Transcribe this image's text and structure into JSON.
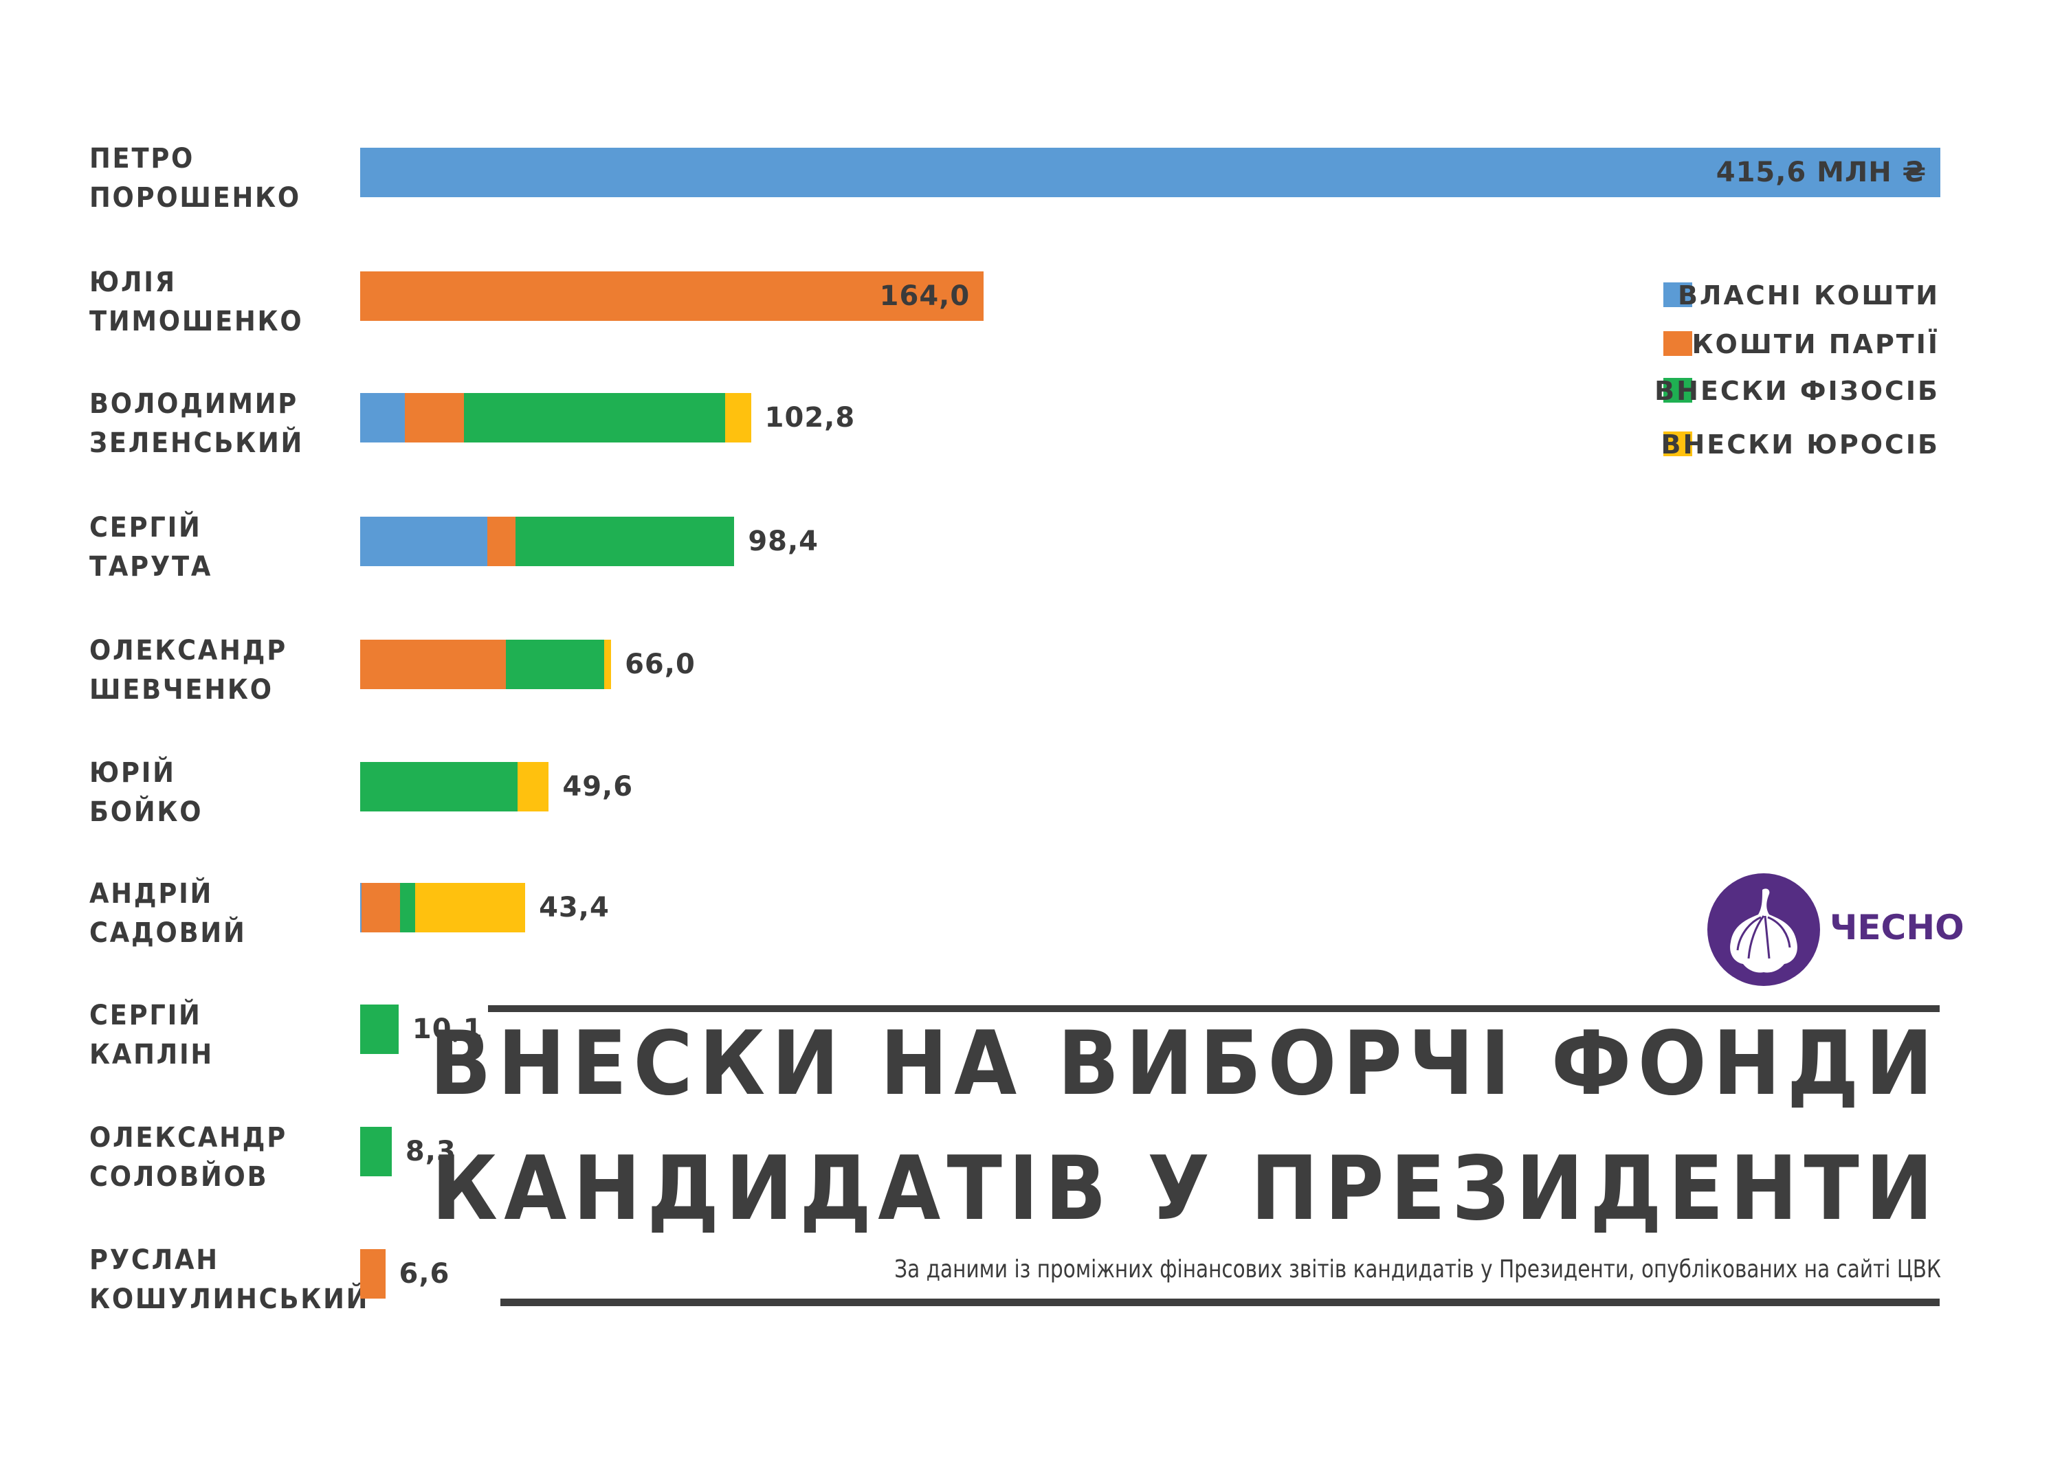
{
  "title": {
    "line1": "ВНЕСКИ НА ВИБОРЧІ ФОНДИ",
    "line2": "КАНДИДАТІВ У ПРЕЗИДЕНТИ",
    "subtitle": "За даними із проміжних фінансових звітів кандидатів у Президенти, опублікованих на сайті ЦВК"
  },
  "logo": {
    "text": "ЧЕСНО",
    "color": "#552D83"
  },
  "legend": [
    {
      "label": "ВЛАСНІ КОШТИ",
      "color": "#5B9BD5"
    },
    {
      "label": "КОШТИ ПАРТІЇ",
      "color": "#ED7D31"
    },
    {
      "label": "ВНЕСКИ ФІЗОСІБ",
      "color": "#1FB052"
    },
    {
      "label": "ВНЕСКИ ЮРОСІБ",
      "color": "#FFC10E"
    }
  ],
  "rows": [
    {
      "first": "ПЕТРО",
      "last": "ПОРОШЕНКО",
      "total_label": "415,6 МЛН ₴"
    },
    {
      "first": "ЮЛІЯ",
      "last": "ТИМОШЕНКО",
      "total_label": "164,0"
    },
    {
      "first": "ВОЛОДИМИР",
      "last": "ЗЕЛЕНСЬКИЙ",
      "total_label": "102,8"
    },
    {
      "first": "СЕРГІЙ",
      "last": "ТАРУТА",
      "total_label": "98,4"
    },
    {
      "first": "ОЛЕКСАНДР",
      "last": "ШЕВЧЕНКО",
      "total_label": "66,0"
    },
    {
      "first": "ЮРІЙ",
      "last": "БОЙКО",
      "total_label": "49,6"
    },
    {
      "first": "АНДРІЙ",
      "last": "САДОВИЙ",
      "total_label": "43,4"
    },
    {
      "first": "СЕРГІЙ",
      "last": "КАПЛІН",
      "total_label": "10,1"
    },
    {
      "first": "ОЛЕКСАНДР",
      "last": "СОЛОВЙОВ",
      "total_label": "8,3"
    },
    {
      "first": "РУСЛАН",
      "last": "КОШУЛИНСЬКИЙ",
      "total_label": "6,6"
    }
  ],
  "chart_data": {
    "type": "bar",
    "orientation": "horizontal",
    "stacked": true,
    "title": "ВНЕСКИ НА ВИБОРЧІ ФОНДИ КАНДИДАТІВ У ПРЕЗИДЕНТИ",
    "subtitle": "За даними із проміжних фінансових звітів кандидатів у Президенти, опублікованих на сайті ЦВК",
    "unit": "млн ₴",
    "xlabel": "",
    "ylabel": "",
    "grid": false,
    "legend_position": "top-right",
    "categories": [
      "ПЕТРО ПОРОШЕНКО",
      "ЮЛІЯ ТИМОШЕНКО",
      "ВОЛОДИМИР ЗЕЛЕНСЬКИЙ",
      "СЕРГІЙ ТАРУТА",
      "ОЛЕКСАНДР ШЕВЧЕНКО",
      "ЮРІЙ БОЙКО",
      "АНДРІЙ САДОВИЙ",
      "СЕРГІЙ КАПЛІН",
      "ОЛЕКСАНДР СОЛОВЙОВ",
      "РУСЛАН КОШУЛИНСЬКИЙ"
    ],
    "totals": [
      415.6,
      164.0,
      102.8,
      98.4,
      66.0,
      49.6,
      43.4,
      10.1,
      8.3,
      6.6
    ],
    "total_labels": [
      "415,6 МЛН ₴",
      "164,0",
      "102,8",
      "98,4",
      "66,0",
      "49,6",
      "43,4",
      "10,1",
      "8,3",
      "6,6"
    ],
    "series": [
      {
        "name": "ВЛАСНІ КОШТИ",
        "color": "#5B9BD5",
        "values": [
          415.6,
          0,
          11.7,
          33.5,
          0,
          0,
          0.3,
          0,
          0,
          0
        ]
      },
      {
        "name": "КОШТИ ПАРТІЇ",
        "color": "#ED7D31",
        "values": [
          0,
          164.0,
          15.6,
          7.4,
          38.4,
          0,
          10.1,
          0,
          0,
          6.6
        ]
      },
      {
        "name": "ВНЕСКИ ФІЗОСІБ",
        "color": "#1FB052",
        "values": [
          0,
          0,
          68.7,
          57.5,
          25.7,
          41.4,
          4.0,
          10.1,
          8.3,
          0
        ]
      },
      {
        "name": "ВНЕСКИ ЮРОСІБ",
        "color": "#FFC10E",
        "values": [
          0,
          0,
          6.8,
          0,
          1.9,
          8.2,
          29.0,
          0,
          0,
          0
        ]
      }
    ],
    "xlim": [
      0,
      415.6
    ]
  }
}
